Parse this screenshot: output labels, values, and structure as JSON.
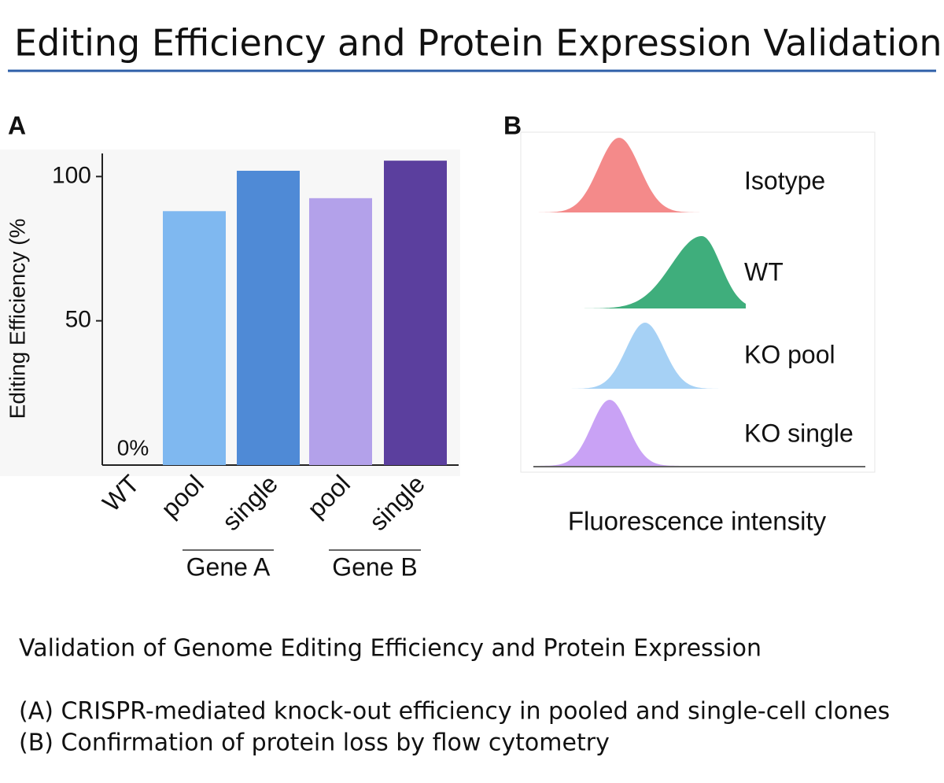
{
  "title": "Editing Efficiency and Protein Expression Validation",
  "chart_data": [
    {
      "type": "bar",
      "panel": "A",
      "ylabel": "Editing Efficiency (%",
      "categories": [
        "WT",
        "pool",
        "single",
        "pool",
        "single"
      ],
      "groups": [
        {
          "label": "Gene A",
          "categories": [
            1,
            2
          ]
        },
        {
          "label": "Gene B",
          "categories": [
            3,
            4
          ]
        }
      ],
      "values": [
        0,
        88,
        102,
        92.5,
        105.5
      ],
      "value_labels": [
        "0%",
        null,
        null,
        null,
        null
      ],
      "colors": [
        "#7fb8f0",
        "#7fb8f0",
        "#4f8ad6",
        "#b3a1ea",
        "#5b3f9e"
      ],
      "ylim": [
        0,
        108
      ],
      "yticks": [
        50,
        100
      ]
    },
    {
      "type": "density",
      "panel": "B",
      "xlabel": "Fluorescence intensity",
      "series": [
        {
          "name": "Isotype",
          "color": "#f48a8a"
        },
        {
          "name": "WT",
          "color": "#3fae7c"
        },
        {
          "name": "KO pool",
          "color": "#a6d1f5"
        },
        {
          "name": "KO single",
          "color": "#c9a2f5"
        }
      ]
    }
  ],
  "caption": {
    "heading": "Validation of Genome Editing Efficiency and Protein Expression",
    "lines": [
      "(A) CRISPR-mediated knock-out efficiency in pooled and single-cell clones",
      "(B) Confirmation of protein loss by flow cytometry"
    ]
  }
}
